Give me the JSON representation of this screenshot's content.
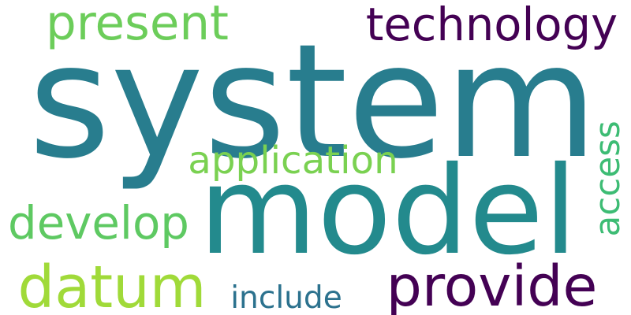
{
  "words": [
    {
      "text": "system",
      "color": "#287d8e"
    },
    {
      "text": "model",
      "color": "#238a8d"
    },
    {
      "text": "technology",
      "color": "#440154"
    },
    {
      "text": "present",
      "color": "#6ccd5a"
    },
    {
      "text": "application",
      "color": "#7ad151"
    },
    {
      "text": "develop",
      "color": "#5ec962"
    },
    {
      "text": "datum",
      "color": "#a0da39"
    },
    {
      "text": "provide",
      "color": "#440154"
    },
    {
      "text": "include",
      "color": "#2c728e"
    },
    {
      "text": "access",
      "color": "#3dbc74"
    }
  ]
}
